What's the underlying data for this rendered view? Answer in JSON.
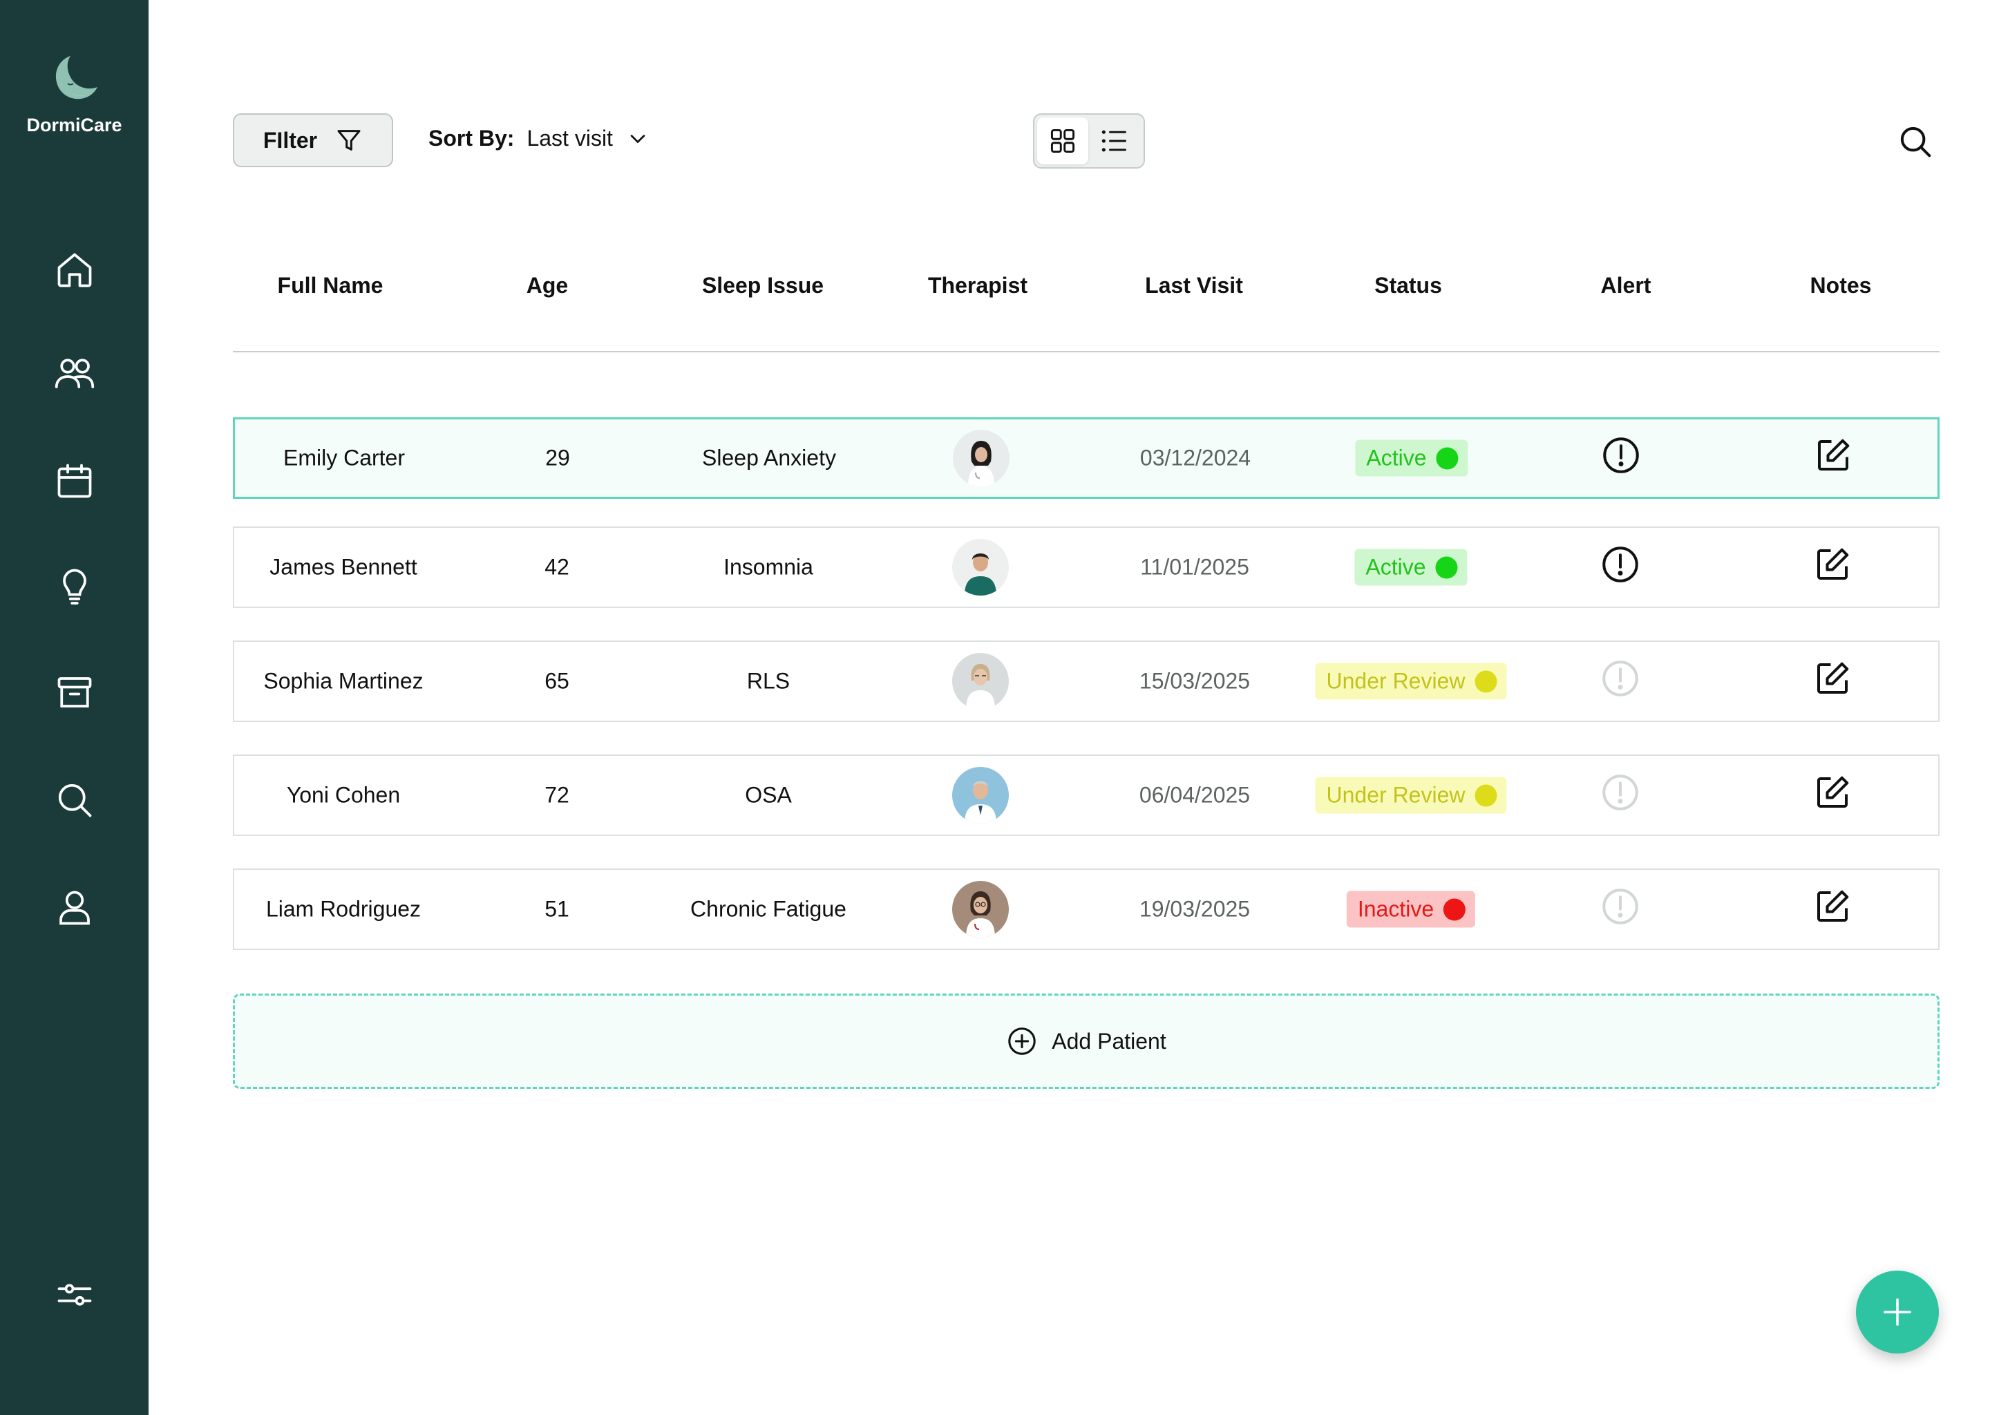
{
  "app": {
    "name": "DormiCare"
  },
  "sidebar": {
    "items": [
      {
        "icon": "home-icon"
      },
      {
        "icon": "users-icon"
      },
      {
        "icon": "calendar-icon"
      },
      {
        "icon": "lightbulb-icon"
      },
      {
        "icon": "archive-icon"
      },
      {
        "icon": "search-icon"
      },
      {
        "icon": "user-icon"
      }
    ],
    "bottom_icon": "sliders-icon"
  },
  "toolbar": {
    "filter_label": "FIlter",
    "sort_label": "Sort By:",
    "sort_value": "Last visit",
    "view_modes": [
      "grid",
      "list"
    ],
    "active_view": "grid"
  },
  "table": {
    "columns": [
      "Full Name",
      "Age",
      "Sleep Issue",
      "Therapist",
      "Last Visit",
      "Status",
      "Alert",
      "Notes"
    ],
    "rows": [
      {
        "name": "Emily Carter",
        "age": "29",
        "issue": "Sleep Anxiety",
        "therapist": "female-dark-hair",
        "last_visit": "03/12/2024",
        "status": "Active",
        "alert": "active",
        "selected": true
      },
      {
        "name": "James Bennett",
        "age": "42",
        "issue": "Insomnia",
        "therapist": "male-green-scrubs",
        "last_visit": "11/01/2025",
        "status": "Active",
        "alert": "active",
        "selected": false
      },
      {
        "name": "Sophia Martinez",
        "age": "65",
        "issue": "RLS",
        "therapist": "female-blonde",
        "last_visit": "15/03/2025",
        "status": "Under Review",
        "alert": "inactive",
        "selected": false
      },
      {
        "name": "Yoni Cohen",
        "age": "72",
        "issue": "OSA",
        "therapist": "male-grey-hair",
        "last_visit": "06/04/2025",
        "status": "Under Review",
        "alert": "inactive",
        "selected": false
      },
      {
        "name": "Liam Rodriguez",
        "age": "51",
        "issue": "Chronic Fatigue",
        "therapist": "female-glasses",
        "last_visit": "19/03/2025",
        "status": "Inactive",
        "alert": "inactive",
        "selected": false
      }
    ]
  },
  "add_patient_label": "Add Patient",
  "colors": {
    "sidebar": "#1b3b3a",
    "accent": "#2ec4a2",
    "status_active": "#16d416",
    "status_review": "#dcdc1a",
    "status_inactive": "#ee1515"
  }
}
